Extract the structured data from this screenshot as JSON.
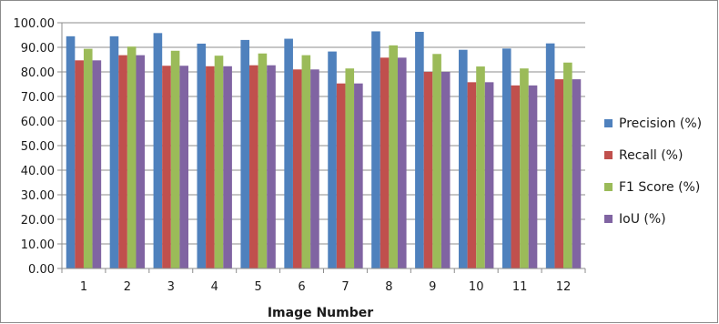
{
  "chart_data": {
    "type": "bar",
    "title": "",
    "xlabel": "Image Number",
    "ylabel": "",
    "ylim": [
      0,
      100
    ],
    "ytick_step": 10,
    "ytick_decimals": 2,
    "grid": true,
    "legend_position": "right",
    "categories": [
      "1",
      "2",
      "3",
      "4",
      "5",
      "6",
      "7",
      "8",
      "9",
      "10",
      "11",
      "12"
    ],
    "series": [
      {
        "name": "Precision (%)",
        "color": "#4f81bd",
        "values": [
          94.5,
          94.5,
          95.8,
          91.5,
          93.0,
          93.5,
          88.3,
          96.5,
          96.3,
          89.0,
          89.5,
          91.6
        ]
      },
      {
        "name": "Recall (%)",
        "color": "#c0504d",
        "values": [
          84.7,
          86.8,
          82.5,
          82.3,
          82.7,
          81.0,
          75.3,
          85.8,
          80.0,
          75.8,
          74.5,
          77.0
        ]
      },
      {
        "name": "F1 Score (%)",
        "color": "#9bbb59",
        "values": [
          89.4,
          90.3,
          88.6,
          86.6,
          87.5,
          86.8,
          81.4,
          90.8,
          87.3,
          82.2,
          81.4,
          83.8
        ]
      },
      {
        "name": "IoU (%)",
        "color": "#8064a2",
        "values": [
          84.7,
          86.8,
          82.5,
          82.3,
          82.7,
          81.0,
          75.3,
          85.8,
          80.0,
          75.8,
          74.5,
          77.0
        ]
      }
    ]
  }
}
